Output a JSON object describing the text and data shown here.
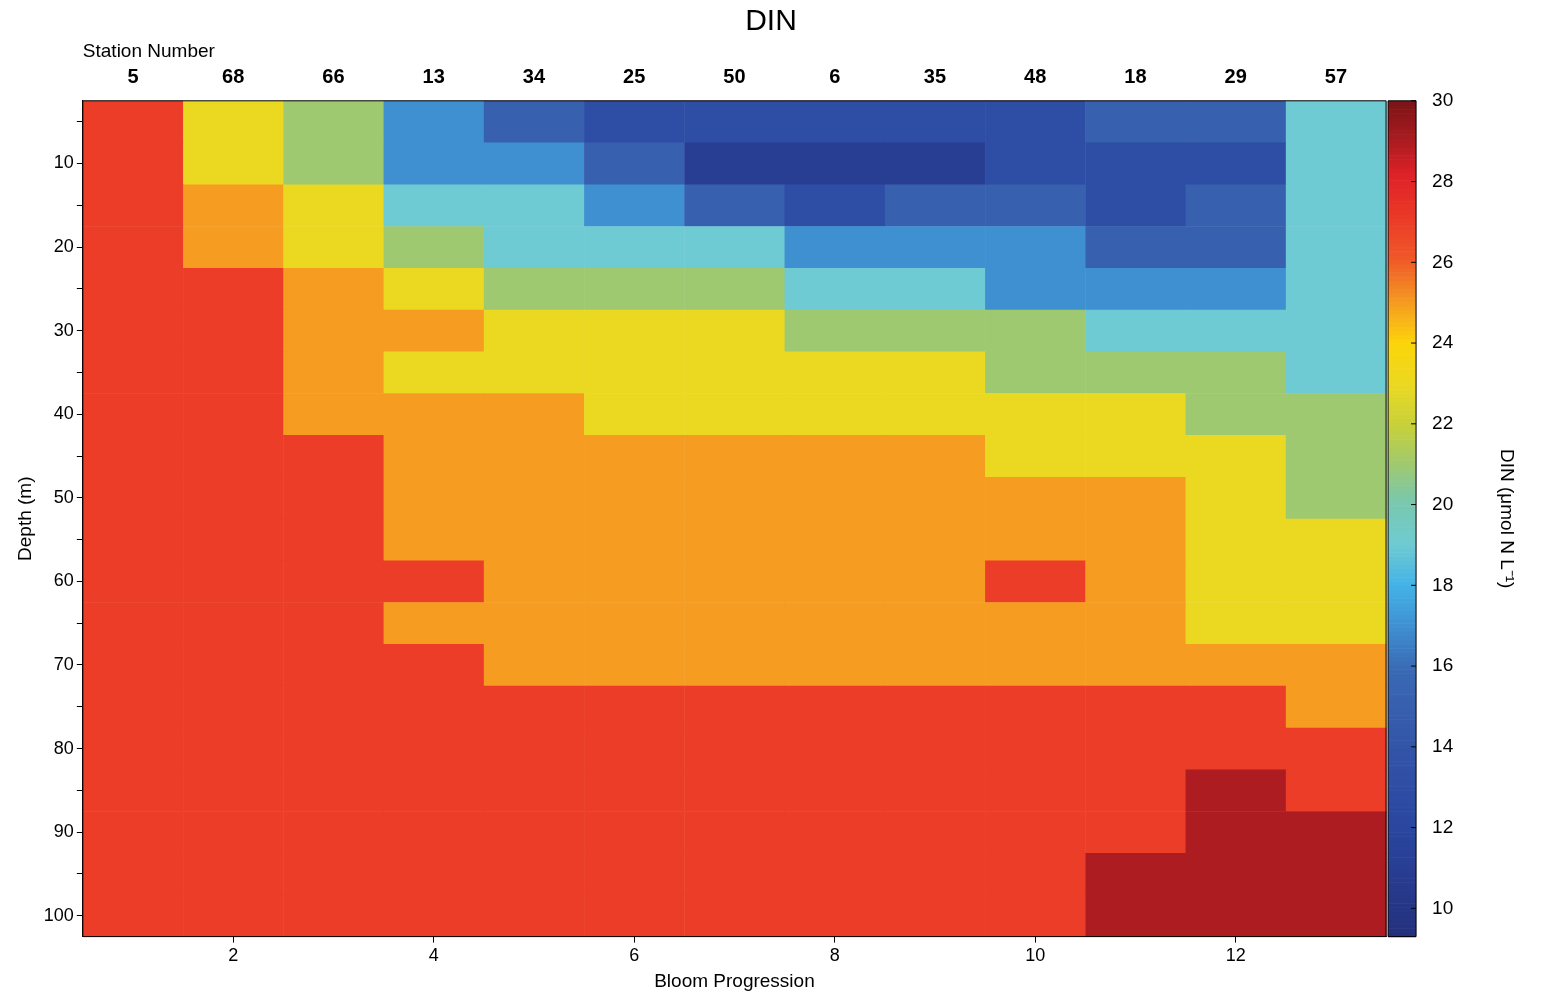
{
  "chart_data": {
    "type": "heatmap",
    "title": "DIN",
    "xlabel": "Station Number",
    "ylabel": "Depth (m)",
    "x2label": "Bloom Progression",
    "clabel": "DIN (μmol N L⁻¹)",
    "categories": [
      "5",
      "68",
      "66",
      "13",
      "34",
      "25",
      "50",
      "6",
      "35",
      "48",
      "18",
      "29",
      "57"
    ],
    "y_categories": [
      null,
      "10",
      null,
      "20",
      null,
      "30",
      null,
      "40",
      null,
      "50",
      null,
      "60",
      null,
      "70",
      null,
      "80",
      null,
      "90",
      null,
      "100"
    ],
    "x2lim": [
      0.5,
      13.5
    ],
    "x2ticks": [
      2,
      4,
      6,
      8,
      10,
      12
    ],
    "cells": [
      [
        27,
        23,
        21,
        17,
        15,
        13,
        13,
        13,
        13,
        13,
        15,
        15,
        19
      ],
      [
        27,
        23,
        21,
        17,
        17,
        15,
        11,
        11,
        11,
        13,
        13,
        13,
        19
      ],
      [
        27,
        25,
        23,
        19,
        19,
        17,
        15,
        13,
        15,
        15,
        13,
        15,
        19
      ],
      [
        27,
        25,
        23,
        21,
        19,
        19,
        19,
        17,
        17,
        17,
        15,
        15,
        19
      ],
      [
        27,
        27,
        25,
        23,
        21,
        21,
        21,
        19,
        19,
        17,
        17,
        17,
        19
      ],
      [
        27,
        27,
        25,
        25,
        23,
        23,
        23,
        21,
        21,
        21,
        19,
        19,
        19
      ],
      [
        27,
        27,
        25,
        23,
        23,
        23,
        23,
        23,
        23,
        21,
        21,
        21,
        19
      ],
      [
        27,
        27,
        25,
        25,
        25,
        23,
        23,
        23,
        23,
        23,
        23,
        21,
        21
      ],
      [
        27,
        27,
        27,
        25,
        25,
        25,
        25,
        25,
        25,
        23,
        23,
        23,
        21
      ],
      [
        27,
        27,
        27,
        25,
        25,
        25,
        25,
        25,
        25,
        25,
        25,
        23,
        21
      ],
      [
        27,
        27,
        27,
        25,
        25,
        25,
        25,
        25,
        25,
        25,
        25,
        23,
        23
      ],
      [
        27,
        27,
        27,
        27,
        25,
        25,
        25,
        25,
        25,
        27,
        25,
        23,
        23
      ],
      [
        27,
        27,
        27,
        25,
        25,
        25,
        25,
        25,
        25,
        25,
        25,
        23,
        23
      ],
      [
        27,
        27,
        27,
        27,
        25,
        25,
        25,
        25,
        25,
        25,
        25,
        25,
        25
      ],
      [
        27,
        27,
        27,
        27,
        27,
        27,
        27,
        27,
        27,
        27,
        27,
        27,
        25
      ],
      [
        27,
        27,
        27,
        27,
        27,
        27,
        27,
        27,
        27,
        27,
        27,
        27,
        27
      ],
      [
        27,
        27,
        27,
        27,
        27,
        27,
        27,
        27,
        27,
        27,
        27,
        29,
        27
      ],
      [
        27,
        27,
        27,
        27,
        27,
        27,
        27,
        27,
        27,
        27,
        27,
        29,
        29
      ],
      [
        27,
        27,
        27,
        27,
        27,
        27,
        27,
        27,
        27,
        27,
        29,
        29,
        29
      ],
      [
        27,
        27,
        27,
        27,
        27,
        27,
        27,
        27,
        27,
        27,
        29,
        29,
        29
      ]
    ],
    "clim": [
      9.3,
      30
    ],
    "cticks": [
      10,
      12,
      14,
      16,
      18,
      20,
      22,
      24,
      26,
      28,
      30
    ]
  }
}
